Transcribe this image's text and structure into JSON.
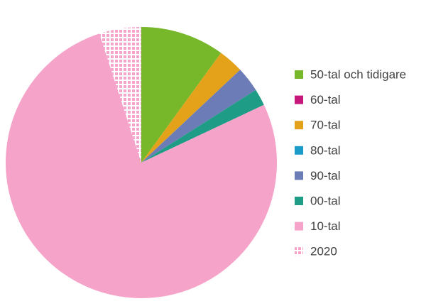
{
  "chart_data": {
    "type": "pie",
    "categories": [
      "50-tal och tidigare",
      "60-tal",
      "70-tal",
      "80-tal",
      "90-tal",
      "00-tal",
      "10-tal",
      "2020"
    ],
    "values": [
      10,
      0,
      3,
      0,
      3,
      2,
      77,
      5
    ],
    "colors": [
      "#76b82a",
      "#c8177a",
      "#e3a21a",
      "#1a9bc8",
      "#6c7cb6",
      "#1f9c86",
      "#f5a3c9",
      "#f5a3c9"
    ],
    "patterns": [
      false,
      false,
      false,
      false,
      false,
      false,
      false,
      true
    ],
    "legend": "right"
  }
}
